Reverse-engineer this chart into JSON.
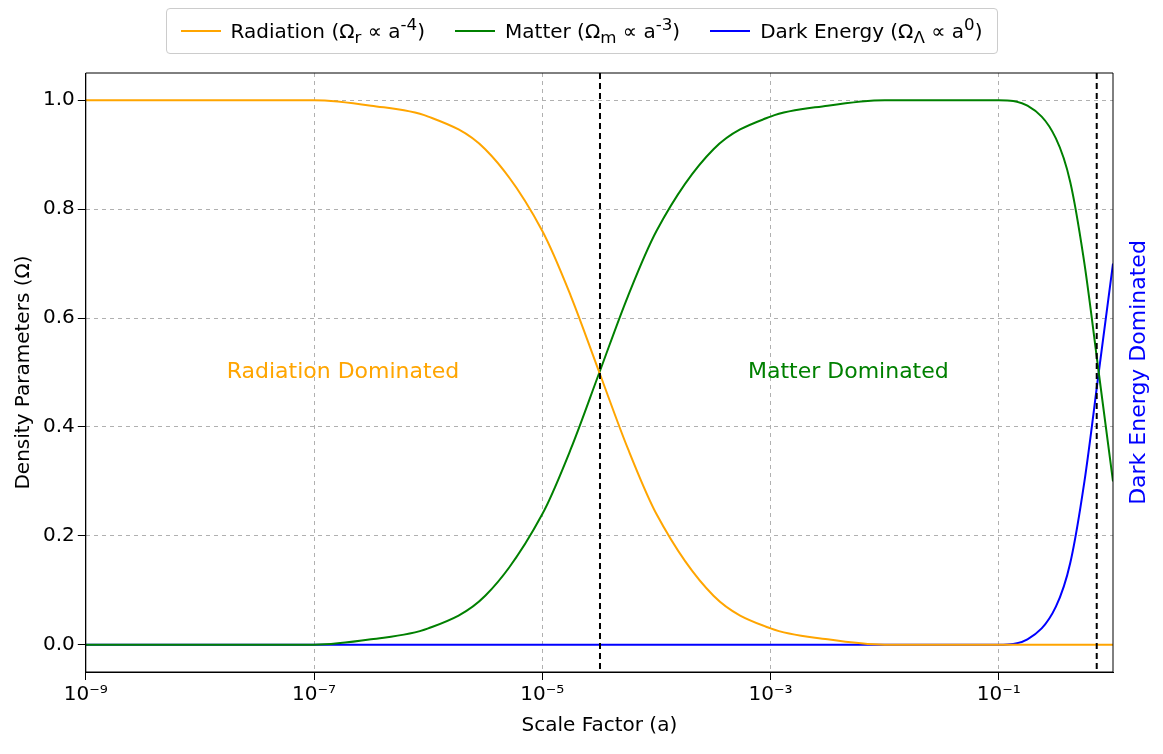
{
  "chart_data": {
    "type": "line",
    "xlabel": "Scale Factor (a)",
    "ylabel": "Density Parameters (Ω)",
    "log": "x",
    "xlim": [
      1e-09,
      1
    ],
    "ylim": [
      -0.05,
      1.05
    ],
    "xticks": [
      {
        "value": 1e-09,
        "label": "10⁻⁹"
      },
      {
        "value": 1e-07,
        "label": "10⁻⁷"
      },
      {
        "value": 1e-05,
        "label": "10⁻⁵"
      },
      {
        "value": 0.001,
        "label": "10⁻³"
      },
      {
        "value": 0.1,
        "label": "10⁻¹"
      }
    ],
    "yticks": [
      {
        "value": 0,
        "label": "0.0"
      },
      {
        "value": 0.2,
        "label": "0.2"
      },
      {
        "value": 0.4,
        "label": "0.4"
      },
      {
        "value": 0.6,
        "label": "0.6"
      },
      {
        "value": 0.8,
        "label": "0.8"
      },
      {
        "value": 1,
        "label": "1.0"
      }
    ],
    "x": [
      1e-09,
      1e-08,
      1e-07,
      3.16e-07,
      1e-06,
      3.16e-06,
      1e-05,
      1.78e-05,
      3.16e-05,
      5.62e-05,
      0.0001,
      0.000316,
      0.001,
      0.00316,
      0.01,
      0.0316,
      0.1,
      0.178,
      0.316,
      0.422,
      0.562,
      0.75,
      1
    ],
    "series": [
      {
        "name": "Radiation (Ω$_{r}$ ∝ a$^{-4}$)",
        "color": "#ffa500",
        "values": [
          1.0,
          1.0,
          1.0,
          0.99,
          0.97,
          0.91,
          0.76,
          0.64,
          0.5,
          0.36,
          0.24,
          0.09,
          0.03,
          0.01,
          0.0,
          0.0,
          0.0,
          0.0,
          0.0,
          0.0,
          0.0,
          0.0,
          0.0
        ]
      },
      {
        "name": "Matter (Ω$_{m}$ ∝ a$^{-3}$)",
        "color": "#008000",
        "values": [
          0.0,
          0.0,
          0.0,
          0.01,
          0.03,
          0.09,
          0.24,
          0.36,
          0.5,
          0.64,
          0.76,
          0.91,
          0.97,
          0.99,
          1.0,
          1.0,
          1.0,
          0.99,
          0.93,
          0.85,
          0.7,
          0.5,
          0.3
        ]
      },
      {
        "name": "Dark Energy (Ω$_{Λ}$ ∝ a$^{0}$)",
        "color": "#0000ff",
        "values": [
          0.0,
          0.0,
          0.0,
          0.0,
          0.0,
          0.0,
          0.0,
          0.0,
          0.0,
          0.0,
          0.0,
          0.0,
          0.0,
          0.0,
          0.0,
          0.0,
          0.0,
          0.01,
          0.07,
          0.15,
          0.3,
          0.5,
          0.7
        ]
      }
    ],
    "ref_lines": [
      {
        "axis": "x",
        "value": 3.2e-05,
        "color": "#000000",
        "line_style": "dashed"
      },
      {
        "axis": "x",
        "value": 0.72,
        "color": "#000000",
        "line_style": "dashed"
      }
    ],
    "annotations": [
      "Radiation Dominated",
      "Matter Dominated",
      "Dark Energy Dominated"
    ],
    "grid": true,
    "legend": "top",
    "line_style": "solid",
    "marker": "none"
  }
}
